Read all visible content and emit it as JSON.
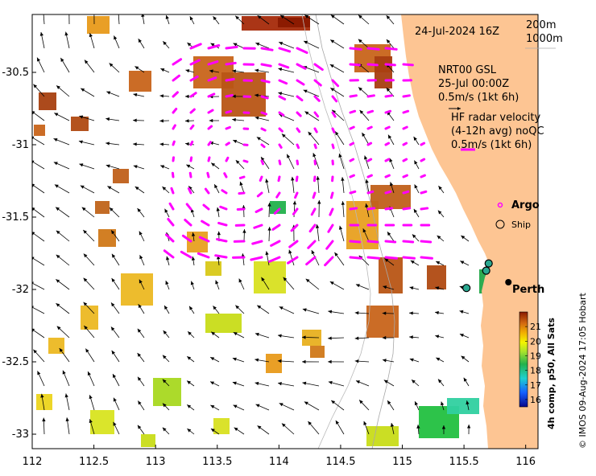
{
  "map": {
    "date_label": "24-Jul-2024 16Z",
    "depth_legend": [
      "200m",
      "1000m"
    ],
    "model_label": [
      "NRT00 GSL",
      "25-Jul 00:00Z",
      "0.5m/s (1kt 6h)"
    ],
    "radar_label": [
      "HF radar velocity",
      "(4-12h avg) noQC",
      "0.5m/s (1kt 6h)"
    ],
    "argo_label": "Argo",
    "ship_label": "Ship",
    "city_label": "Perth",
    "credit": "© IMOS 09-Aug-2024 17:05 Hobart",
    "colorbar_title": "4h comp, p50, All Sats",
    "colors": {
      "land": "#fdc593",
      "radar_arrow": "#ff00ff",
      "model_arrow": "#000000"
    }
  },
  "axes": {
    "lon_ticks": [
      "112",
      "112.5",
      "113",
      "113.5",
      "114",
      "114.5",
      "115",
      "115.5",
      "116"
    ],
    "lat_ticks": [
      "-30.5",
      "-31",
      "-31.5",
      "-32",
      "-32.5",
      "-33"
    ],
    "lon_range": [
      112,
      116.1
    ],
    "lat_range": [
      -33.1,
      -30.1
    ]
  },
  "colorbar": {
    "ticks": [
      "21",
      "20",
      "19",
      "18",
      "17",
      "16"
    ],
    "range": [
      15.5,
      22
    ]
  },
  "markers": {
    "city": {
      "lon": 115.86,
      "lat": -31.95
    },
    "ships": [
      {
        "lon": 115.7,
        "lat": -31.82
      },
      {
        "lon": 115.68,
        "lat": -31.87
      },
      {
        "lon": 115.52,
        "lat": -31.99
      }
    ]
  }
}
